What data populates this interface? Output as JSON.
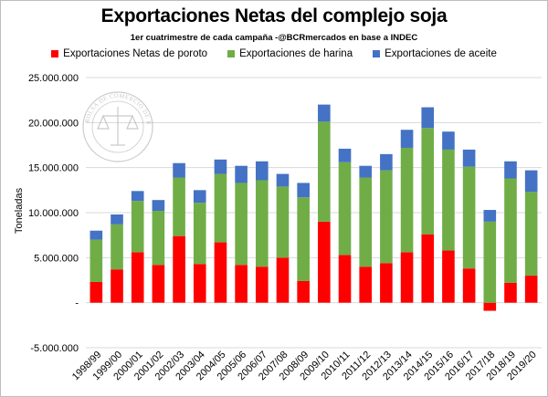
{
  "chart_data": {
    "type": "bar",
    "stacked": true,
    "title": "Exportaciones Netas del complejo soja",
    "subtitle": "1er cuatrimestre de cada campaña -@BCRmercados en base a INDEC",
    "ylabel": "Toneladas",
    "xlabel": "",
    "ylim": [
      -5000000,
      25000000
    ],
    "ytick_values": [
      -5000000,
      0,
      5000000,
      10000000,
      15000000,
      20000000,
      25000000
    ],
    "ytick_labels": [
      "-5.000.000",
      "-",
      "5.000.000",
      "10.000.000",
      "15.000.000",
      "20.000.000",
      "25.000.000"
    ],
    "grid": true,
    "legend_position": "top",
    "categories": [
      "1998/99",
      "1999/00",
      "2000/01",
      "2001/02",
      "2002/03",
      "2003/04",
      "2004/05",
      "2005/06",
      "2006/07",
      "2007/08",
      "2008/09",
      "2009/10",
      "2010/11",
      "2011/12",
      "2012/13",
      "2013/14",
      "2014/15",
      "2015/16",
      "2016/17",
      "2017/18",
      "2018/19",
      "2019/20"
    ],
    "series": [
      {
        "name": "Exportaciones Netas de poroto",
        "color": "#ff0000",
        "values": [
          2300000,
          3700000,
          5600000,
          4200000,
          7400000,
          4300000,
          6700000,
          4200000,
          4000000,
          5000000,
          2400000,
          9000000,
          5300000,
          4000000,
          4400000,
          5600000,
          7600000,
          5800000,
          3800000,
          -900000,
          2200000,
          3000000
        ]
      },
      {
        "name": "Exportaciones de harina",
        "color": "#70ad47",
        "values": [
          4700000,
          5000000,
          5700000,
          6000000,
          6500000,
          6800000,
          7600000,
          9100000,
          9600000,
          7900000,
          9300000,
          11100000,
          10300000,
          9900000,
          10300000,
          11600000,
          11800000,
          11200000,
          11300000,
          9000000,
          11600000,
          9300000
        ]
      },
      {
        "name": "Exportaciones de aceite",
        "color": "#4472c4",
        "values": [
          1000000,
          1100000,
          1100000,
          1200000,
          1600000,
          1400000,
          1600000,
          1900000,
          2100000,
          1400000,
          1600000,
          1900000,
          1500000,
          1300000,
          1800000,
          2000000,
          2300000,
          2000000,
          1900000,
          1300000,
          1900000,
          2400000
        ]
      }
    ]
  },
  "watermark": {
    "text": "BOLSA DE COMERCIO DE ROSARIO"
  }
}
